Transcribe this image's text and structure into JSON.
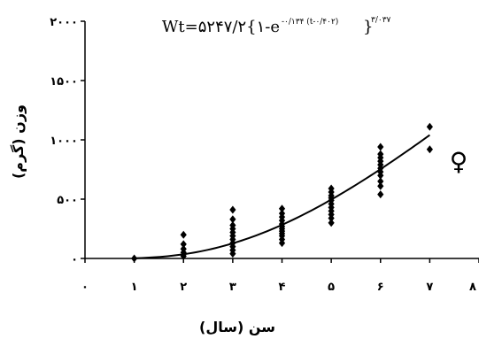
{
  "chart_data": {
    "type": "scatter",
    "title": "Wt=۵۲۴۷/۲{۱-e",
    "title_exponent": "-۰/۱۳۴ (t-۰/۴۰۲)",
    "title_outer_exponent": "۳/۰۳۷",
    "title_close": "}",
    "xlabel": "سن (سال)",
    "ylabel": "وزن (گرم)",
    "xlim": [
      0,
      8
    ],
    "ylim": [
      0,
      2000
    ],
    "x_ticks": [
      0,
      1,
      2,
      3,
      4,
      5,
      6,
      7,
      8
    ],
    "x_tick_labels": [
      "۰",
      "۱",
      "۲",
      "۳",
      "۴",
      "۵",
      "۶",
      "۷",
      "۸"
    ],
    "y_ticks": [
      0,
      500,
      1000,
      1500,
      2000
    ],
    "y_tick_labels": [
      "۰",
      "۵۰۰",
      "۱۰۰۰",
      "۱۵۰۰",
      "۲۰۰۰"
    ],
    "grid": false,
    "symbol": "♀",
    "marker_color": "#000000",
    "curve_color": "#000000",
    "series": [
      {
        "type": "scatter",
        "points": [
          {
            "x": 1,
            "y": 0
          },
          {
            "x": 2,
            "y": 20
          },
          {
            "x": 2,
            "y": 50
          },
          {
            "x": 2,
            "y": 80
          },
          {
            "x": 2,
            "y": 120
          },
          {
            "x": 2,
            "y": 200
          },
          {
            "x": 3,
            "y": 40
          },
          {
            "x": 3,
            "y": 70
          },
          {
            "x": 3,
            "y": 100
          },
          {
            "x": 3,
            "y": 130
          },
          {
            "x": 3,
            "y": 160
          },
          {
            "x": 3,
            "y": 190
          },
          {
            "x": 3,
            "y": 220
          },
          {
            "x": 3,
            "y": 250
          },
          {
            "x": 3,
            "y": 280
          },
          {
            "x": 3,
            "y": 330
          },
          {
            "x": 3,
            "y": 410
          },
          {
            "x": 4,
            "y": 130
          },
          {
            "x": 4,
            "y": 160
          },
          {
            "x": 4,
            "y": 190
          },
          {
            "x": 4,
            "y": 210
          },
          {
            "x": 4,
            "y": 230
          },
          {
            "x": 4,
            "y": 250
          },
          {
            "x": 4,
            "y": 270
          },
          {
            "x": 4,
            "y": 290
          },
          {
            "x": 4,
            "y": 320
          },
          {
            "x": 4,
            "y": 350
          },
          {
            "x": 4,
            "y": 380
          },
          {
            "x": 4,
            "y": 420
          },
          {
            "x": 5,
            "y": 300
          },
          {
            "x": 5,
            "y": 340
          },
          {
            "x": 5,
            "y": 370
          },
          {
            "x": 5,
            "y": 400
          },
          {
            "x": 5,
            "y": 430
          },
          {
            "x": 5,
            "y": 460
          },
          {
            "x": 5,
            "y": 490
          },
          {
            "x": 5,
            "y": 510
          },
          {
            "x": 5,
            "y": 530
          },
          {
            "x": 5,
            "y": 560
          },
          {
            "x": 5,
            "y": 590
          },
          {
            "x": 6,
            "y": 540
          },
          {
            "x": 6,
            "y": 610
          },
          {
            "x": 6,
            "y": 650
          },
          {
            "x": 6,
            "y": 700
          },
          {
            "x": 6,
            "y": 730
          },
          {
            "x": 6,
            "y": 760
          },
          {
            "x": 6,
            "y": 790
          },
          {
            "x": 6,
            "y": 820
          },
          {
            "x": 6,
            "y": 850
          },
          {
            "x": 6,
            "y": 880
          },
          {
            "x": 6,
            "y": 940
          },
          {
            "x": 7,
            "y": 920
          },
          {
            "x": 7,
            "y": 1110
          }
        ]
      },
      {
        "type": "line",
        "model": {
          "Winf": 5247.2,
          "k": 0.134,
          "t0": 0.402,
          "b": 3.037
        },
        "x_range": [
          1,
          7
        ]
      }
    ]
  }
}
